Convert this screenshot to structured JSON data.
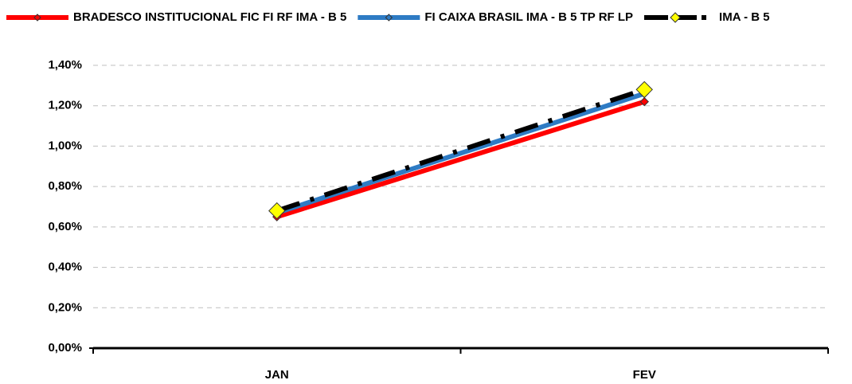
{
  "chart_data": {
    "type": "line",
    "categories": [
      "JAN",
      "FEV"
    ],
    "series": [
      {
        "name": "BRADESCO INSTITUCIONAL FIC FI RF IMA - B 5",
        "color": "#ff0000",
        "marker_color": "#ff0000",
        "values": [
          0.65,
          1.22
        ]
      },
      {
        "name": "FI CAIXA BRASIL IMA - B 5 TP RF LP",
        "color": "#2e7bc4",
        "marker_color": "#2e7bc4",
        "values": [
          0.67,
          1.26
        ]
      },
      {
        "name": "IMA - B 5",
        "color": "#000000",
        "marker_color": "#ffff00",
        "dashed": true,
        "values": [
          0.68,
          1.28
        ]
      }
    ],
    "ylim": [
      0,
      1.4
    ],
    "yticks": [
      {
        "value": 0,
        "label": "0,00%"
      },
      {
        "value": 0.2,
        "label": "0,20%"
      },
      {
        "value": 0.4,
        "label": "0,40%"
      },
      {
        "value": 0.6,
        "label": "0,60%"
      },
      {
        "value": 0.8,
        "label": "0,80%"
      },
      {
        "value": 1.0,
        "label": "1,00%"
      },
      {
        "value": 1.2,
        "label": "1,20%"
      },
      {
        "value": 1.4,
        "label": "1,40%"
      }
    ],
    "grid": true,
    "legend": "top"
  }
}
